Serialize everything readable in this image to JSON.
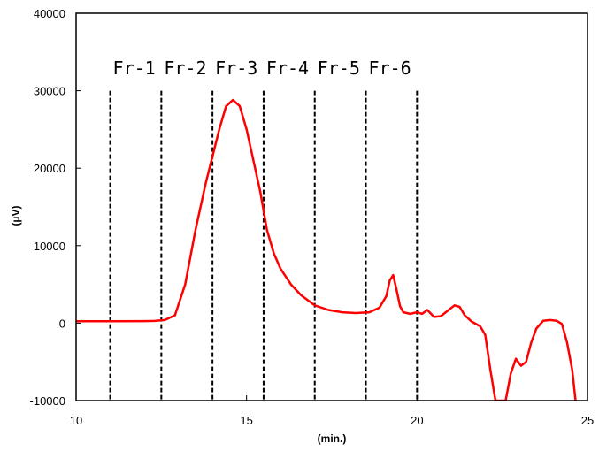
{
  "chart_data": {
    "type": "line",
    "title": "",
    "xlabel": "(min.)",
    "ylabel": "(µV)",
    "xlim": [
      10,
      25
    ],
    "ylim": [
      -10000,
      40000
    ],
    "x_ticks": [
      10,
      15,
      20,
      25
    ],
    "x_tick_labels": [
      "10",
      "15",
      "20",
      "25"
    ],
    "y_ticks": [
      -10000,
      0,
      10000,
      20000,
      30000,
      40000
    ],
    "y_tick_labels": [
      "-10000",
      "0",
      "10000",
      "20000",
      "30000",
      "40000"
    ],
    "grid": false,
    "legend": "none",
    "fractions": [
      {
        "label": "Fr-1",
        "start": 11.0
      },
      {
        "label": "Fr-2",
        "start": 12.5
      },
      {
        "label": "Fr-3",
        "start": 14.0
      },
      {
        "label": "Fr-4",
        "start": 15.5
      },
      {
        "label": "Fr-5",
        "start": 17.0
      },
      {
        "label": "Fr-6",
        "start": 18.5
      }
    ],
    "fraction_end": 20.0,
    "fraction_line_top": 30000,
    "series": [
      {
        "color": "#ff0000",
        "x": [
          10.0,
          11.0,
          12.0,
          12.3,
          12.6,
          12.9,
          13.2,
          13.5,
          13.8,
          14.0,
          14.2,
          14.4,
          14.6,
          14.8,
          15.0,
          15.2,
          15.4,
          15.6,
          15.8,
          16.0,
          16.3,
          16.6,
          17.0,
          17.4,
          17.8,
          18.2,
          18.6,
          18.9,
          19.1,
          19.2,
          19.3,
          19.4,
          19.5,
          19.6,
          19.8,
          20.0,
          20.15,
          20.3,
          20.5,
          20.7,
          20.9,
          21.1,
          21.25,
          21.4,
          21.6,
          21.85,
          22.0,
          22.15,
          22.3,
          22.6,
          22.75,
          22.9,
          23.05,
          23.2,
          23.35,
          23.5,
          23.7,
          23.9,
          24.1,
          24.25,
          24.4,
          24.55,
          24.65
        ],
        "values": [
          250,
          250,
          260,
          280,
          400,
          1000,
          5000,
          12000,
          18000,
          21500,
          25000,
          28000,
          28800,
          28000,
          25000,
          21000,
          17000,
          12000,
          9000,
          7000,
          5000,
          3600,
          2300,
          1700,
          1400,
          1300,
          1400,
          2000,
          3500,
          5500,
          6200,
          4300,
          2200,
          1400,
          1200,
          1400,
          1200,
          1700,
          800,
          900,
          1600,
          2300,
          2100,
          1000,
          200,
          -400,
          -1500,
          -6000,
          -10000,
          -10000,
          -6500,
          -4600,
          -5500,
          -5000,
          -2500,
          -700,
          300,
          400,
          300,
          -100,
          -2500,
          -6000,
          -10000
        ]
      }
    ]
  }
}
